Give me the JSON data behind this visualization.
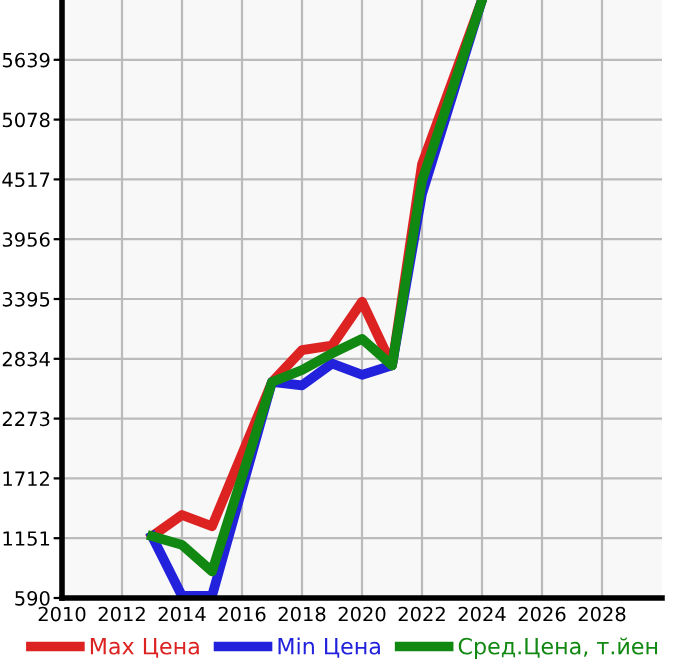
{
  "chart_data": {
    "type": "line",
    "x": [
      2013,
      2014,
      2015,
      2017,
      2018,
      2019,
      2020,
      2021,
      2022,
      2024
    ],
    "series": [
      {
        "name": "Max Цена",
        "color": "#dd2222",
        "values": [
          1170,
          1369,
          1263,
          2616,
          2915,
          2959,
          3370,
          2772,
          4660,
          6200
        ]
      },
      {
        "name": "Min Цена",
        "color": "#2222dd",
        "values": [
          1170,
          609,
          609,
          2616,
          2585,
          2790,
          2684,
          2772,
          4380,
          6200
        ]
      },
      {
        "name": "Сред.Цена, т.йен",
        "color": "#118811",
        "values": [
          1170,
          1089,
          839,
          2616,
          2728,
          2884,
          3021,
          2772,
          4504,
          6200
        ]
      }
    ],
    "xlim": [
      2010,
      2030
    ],
    "xticks": [
      2010,
      2012,
      2014,
      2016,
      2018,
      2020,
      2022,
      2024,
      2026,
      2028
    ],
    "ylim": [
      590,
      6200
    ],
    "yticks": [
      590,
      1151,
      1712,
      2273,
      2834,
      3395,
      3956,
      4517,
      5078,
      5639
    ],
    "grid": true,
    "legend": "bottom",
    "marker": "none",
    "line_style": "solid"
  }
}
